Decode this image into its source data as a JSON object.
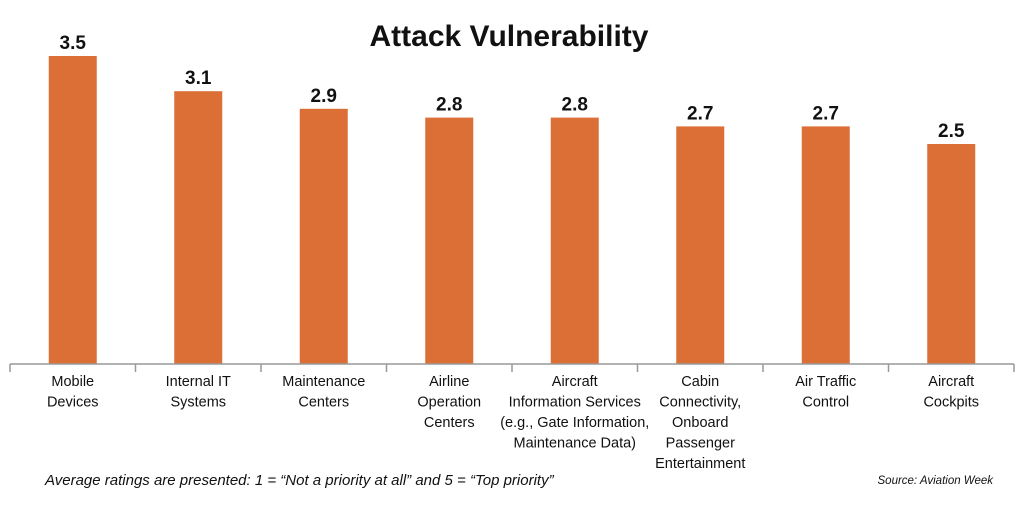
{
  "chart_data": {
    "type": "bar",
    "title": "Attack Vulnerability",
    "categories": [
      [
        "Mobile",
        "Devices"
      ],
      [
        "Internal IT",
        "Systems"
      ],
      [
        "Maintenance",
        "Centers"
      ],
      [
        "Airline",
        "Operation",
        "Centers"
      ],
      [
        "Aircraft",
        "Information Services",
        "(e.g., Gate Information,",
        "Maintenance Data)"
      ],
      [
        "Cabin",
        "Connectivity,",
        "Onboard",
        "Passenger",
        "Entertainment"
      ],
      [
        "Air Traffic",
        "Control"
      ],
      [
        "Aircraft",
        "Cockpits"
      ]
    ],
    "values": [
      3.5,
      3.1,
      2.9,
      2.8,
      2.8,
      2.7,
      2.7,
      2.5
    ],
    "value_labels": [
      "3.5",
      "3.1",
      "2.9",
      "2.8",
      "2.8",
      "2.7",
      "2.7",
      "2.5"
    ],
    "ylim": [
      0,
      3.5
    ],
    "grid": false,
    "bar_color": "#DB6F35",
    "axis_color": "#999999"
  },
  "footnote": "Average ratings are presented: 1 = “Not a priority at all” and 5 = “Top priority”",
  "source": "Source: Aviation Week"
}
